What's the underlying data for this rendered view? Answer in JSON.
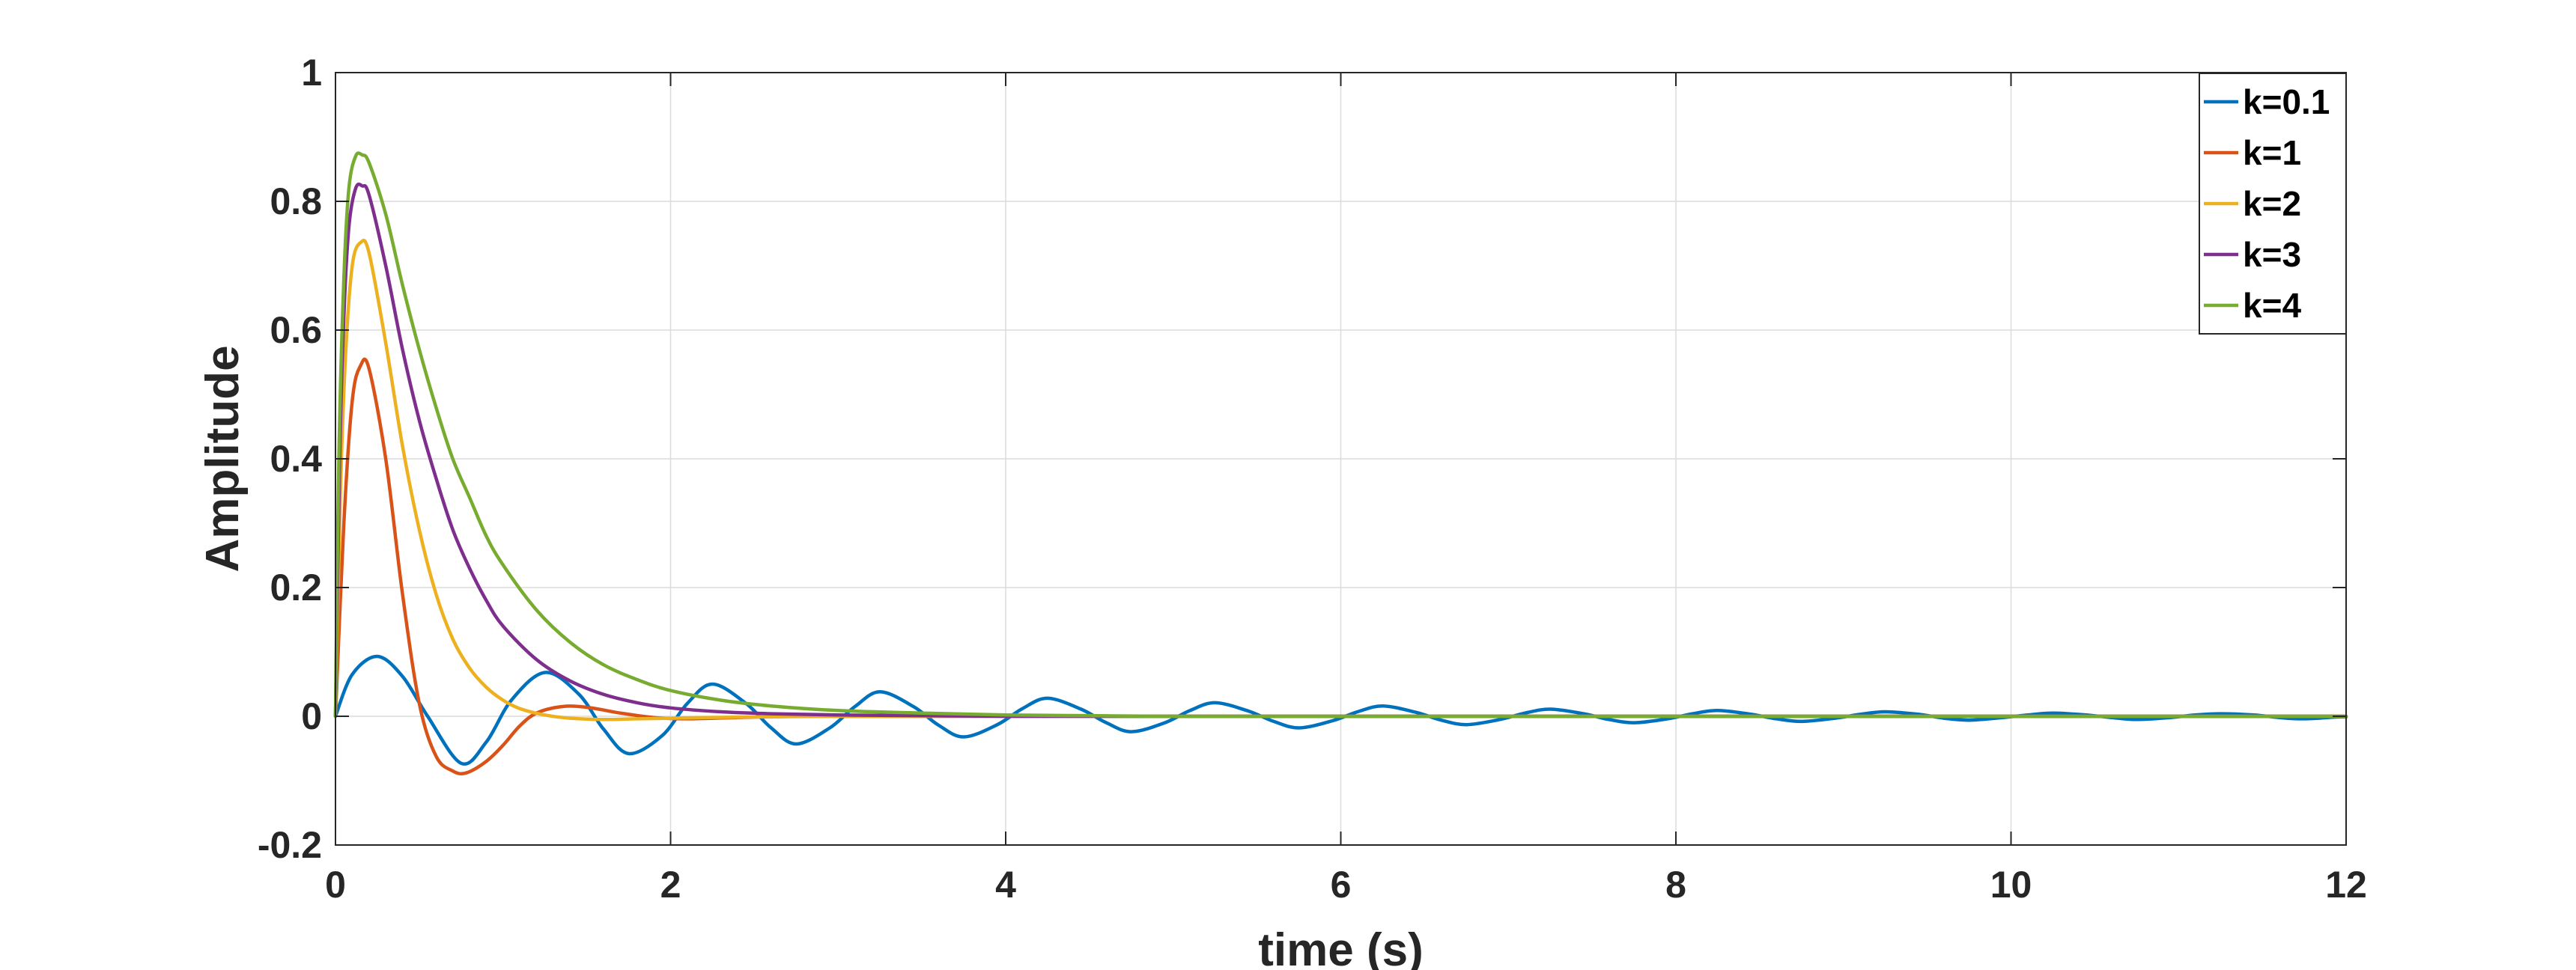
{
  "chart_data": {
    "type": "line",
    "title": "",
    "xlabel": "time (s)",
    "ylabel": "Amplitude",
    "xlim": [
      0,
      12
    ],
    "ylim": [
      -0.2,
      1
    ],
    "xticks": [
      0,
      2,
      4,
      6,
      8,
      10,
      12
    ],
    "yticks": [
      -0.2,
      0,
      0.2,
      0.4,
      0.6,
      0.8,
      1
    ],
    "xtick_labels": [
      "0",
      "2",
      "4",
      "6",
      "8",
      "10",
      "12"
    ],
    "ytick_labels": [
      "-0.2",
      "0",
      "0.2",
      "0.4",
      "0.6",
      "0.8",
      "1"
    ],
    "grid": true,
    "legend_position": "top-right",
    "series": [
      {
        "name": "k=0.1",
        "color": "#0072BD",
        "x": [
          0,
          0.1,
          0.25,
          0.4,
          0.55,
          0.75,
          0.9,
          1.05,
          1.25,
          1.45,
          1.6,
          1.75,
          1.95,
          2.1,
          2.25,
          2.45,
          2.6,
          2.75,
          2.95,
          3.1,
          3.25,
          3.45,
          3.6,
          3.75,
          3.95,
          4.1,
          4.25,
          4.45,
          4.6,
          4.75,
          4.95,
          5.1,
          5.25,
          5.45,
          5.6,
          5.75,
          5.95,
          6.1,
          6.25,
          6.45,
          6.6,
          6.75,
          6.95,
          7.1,
          7.25,
          7.45,
          7.6,
          7.75,
          7.95,
          8.1,
          8.25,
          8.45,
          8.6,
          8.75,
          8.95,
          9.1,
          9.25,
          9.45,
          9.6,
          9.75,
          9.95,
          10.1,
          10.25,
          10.45,
          10.6,
          10.75,
          10.95,
          11.1,
          11.25,
          11.45,
          11.6,
          11.75,
          11.95,
          12
        ],
        "y": [
          0,
          0.065,
          0.093,
          0.062,
          0.0,
          -0.073,
          -0.04,
          0.025,
          0.068,
          0.035,
          -0.02,
          -0.058,
          -0.03,
          0.02,
          0.05,
          0.02,
          -0.018,
          -0.043,
          -0.018,
          0.015,
          0.038,
          0.015,
          -0.014,
          -0.032,
          -0.013,
          0.012,
          0.028,
          0.011,
          -0.01,
          -0.024,
          -0.01,
          0.009,
          0.021,
          0.008,
          -0.008,
          -0.018,
          -0.007,
          0.007,
          0.016,
          0.006,
          -0.006,
          -0.013,
          -0.005,
          0.005,
          0.011,
          0.004,
          -0.005,
          -0.01,
          -0.004,
          0.004,
          0.009,
          0.003,
          -0.004,
          -0.008,
          -0.003,
          0.003,
          0.007,
          0.003,
          -0.003,
          -0.006,
          -0.002,
          0.002,
          0.005,
          0.002,
          -0.002,
          -0.005,
          -0.002,
          0.002,
          0.004,
          0.002,
          -0.002,
          -0.004,
          -0.001,
          -0.001
        ]
      },
      {
        "name": "k=1",
        "color": "#D95319",
        "x": [
          0,
          0.05,
          0.1,
          0.15,
          0.2,
          0.3,
          0.4,
          0.5,
          0.6,
          0.7,
          0.78,
          0.9,
          1.0,
          1.1,
          1.2,
          1.35,
          1.5,
          1.7,
          1.9,
          2.1,
          2.4,
          2.8,
          3.5,
          5,
          8,
          12
        ],
        "y": [
          0,
          0.3,
          0.49,
          0.545,
          0.54,
          0.4,
          0.19,
          0.02,
          -0.062,
          -0.085,
          -0.088,
          -0.07,
          -0.045,
          -0.015,
          0.005,
          0.015,
          0.014,
          0.005,
          -0.002,
          -0.004,
          -0.002,
          0.0,
          0.0,
          0.0,
          0.0,
          0.0
        ]
      },
      {
        "name": "k=2",
        "color": "#EDB120",
        "x": [
          0,
          0.03,
          0.06,
          0.1,
          0.15,
          0.2,
          0.3,
          0.4,
          0.5,
          0.6,
          0.7,
          0.8,
          0.9,
          1.0,
          1.1,
          1.25,
          1.4,
          1.6,
          1.8,
          2.0,
          2.2,
          2.5,
          3.0,
          4,
          6,
          12
        ],
        "y": [
          0,
          0.35,
          0.56,
          0.7,
          0.736,
          0.72,
          0.58,
          0.42,
          0.29,
          0.19,
          0.12,
          0.075,
          0.045,
          0.025,
          0.012,
          0.002,
          -0.003,
          -0.005,
          -0.004,
          -0.003,
          -0.002,
          -0.001,
          0.0,
          0.0,
          0.0,
          0.0
        ]
      },
      {
        "name": "k=3",
        "color": "#7E2F8E",
        "x": [
          0,
          0.025,
          0.05,
          0.08,
          0.12,
          0.16,
          0.2,
          0.3,
          0.4,
          0.5,
          0.6,
          0.7,
          0.8,
          0.9,
          1.0,
          1.2,
          1.4,
          1.6,
          1.8,
          2.0,
          2.3,
          2.6,
          3.0,
          3.5,
          4.0,
          5.0,
          6,
          8,
          12
        ],
        "y": [
          0,
          0.4,
          0.62,
          0.76,
          0.82,
          0.824,
          0.81,
          0.7,
          0.57,
          0.46,
          0.37,
          0.29,
          0.23,
          0.18,
          0.14,
          0.088,
          0.055,
          0.034,
          0.021,
          0.013,
          0.007,
          0.004,
          0.002,
          0.001,
          0.0,
          0.0,
          0.0,
          0.0,
          0.0
        ]
      },
      {
        "name": "k=4",
        "color": "#77AC30",
        "x": [
          0,
          0.02,
          0.05,
          0.08,
          0.12,
          0.16,
          0.2,
          0.3,
          0.4,
          0.5,
          0.6,
          0.7,
          0.8,
          0.9,
          1.0,
          1.2,
          1.4,
          1.6,
          1.8,
          2.0,
          2.3,
          2.6,
          3.0,
          3.5,
          4.0,
          4.5,
          5.0,
          6,
          8,
          12
        ],
        "y": [
          0,
          0.4,
          0.68,
          0.82,
          0.87,
          0.872,
          0.86,
          0.78,
          0.67,
          0.57,
          0.48,
          0.4,
          0.34,
          0.28,
          0.235,
          0.165,
          0.115,
          0.08,
          0.057,
          0.04,
          0.025,
          0.016,
          0.009,
          0.005,
          0.002,
          0.001,
          0.0,
          0.0,
          0.0,
          0.0
        ]
      }
    ]
  }
}
